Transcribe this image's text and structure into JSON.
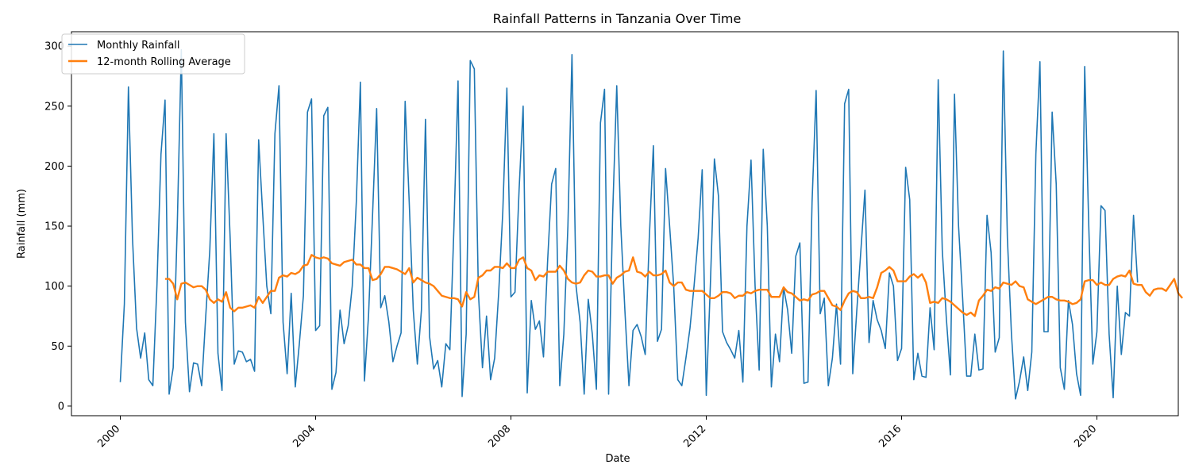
{
  "chart_data": {
    "type": "line",
    "title": "Rainfall Patterns in Tanzania Over Time",
    "xlabel": "Date",
    "ylabel": "Rainfall (mm)",
    "x_start_year": 2000,
    "x_ticks": [
      "2000",
      "2004",
      "2008",
      "2012",
      "2016",
      "2020"
    ],
    "y_ticks": [
      0,
      50,
      100,
      150,
      200,
      250,
      300
    ],
    "xlim": [
      "1999-01",
      "2021-09"
    ],
    "ylim": [
      -8,
      312
    ],
    "grid": false,
    "legend_position": "top-left",
    "series": [
      {
        "name": "Monthly Rainfall",
        "color": "#1f77b4",
        "start": "2000-01",
        "values": [
          20,
          85,
          266,
          140,
          65,
          40,
          61,
          22,
          17,
          100,
          210,
          255,
          10,
          32,
          150,
          297,
          70,
          12,
          36,
          35,
          17,
          75,
          130,
          227,
          44,
          13,
          227,
          140,
          35,
          46,
          45,
          37,
          39,
          29,
          222,
          160,
          100,
          77,
          227,
          267,
          70,
          27,
          94,
          16,
          52,
          92,
          245,
          256,
          63,
          67,
          242,
          249,
          14,
          28,
          80,
          52,
          67,
          100,
          170,
          270,
          21,
          75,
          160,
          248,
          82,
          92,
          70,
          37,
          50,
          61,
          254,
          170,
          80,
          35,
          80,
          239,
          58,
          31,
          38,
          16,
          52,
          47,
          150,
          271,
          8,
          60,
          288,
          281,
          95,
          32,
          75,
          22,
          40,
          95,
          162,
          265,
          91,
          95,
          180,
          250,
          11,
          88,
          64,
          71,
          41,
          120,
          185,
          198,
          17,
          60,
          150,
          293,
          100,
          70,
          10,
          89,
          60,
          14,
          236,
          264,
          10,
          160,
          267,
          150,
          80,
          17,
          63,
          68,
          58,
          43,
          140,
          217,
          54,
          64,
          198,
          150,
          100,
          22,
          17,
          40,
          65,
          100,
          140,
          197,
          9,
          100,
          206,
          175,
          62,
          53,
          47,
          40,
          63,
          20,
          150,
          205,
          100,
          30,
          214,
          150,
          16,
          60,
          37,
          99,
          80,
          44,
          125,
          136,
          19,
          20,
          170,
          263,
          77,
          90,
          17,
          40,
          85,
          35,
          252,
          264,
          27,
          80,
          130,
          180,
          53,
          88,
          72,
          63,
          48,
          111,
          100,
          38,
          48,
          199,
          172,
          22,
          44,
          25,
          24,
          82,
          47,
          272,
          130,
          73,
          26,
          260,
          150,
          90,
          25,
          25,
          60,
          30,
          31,
          159,
          128,
          45,
          57,
          296,
          140,
          60,
          6,
          21,
          41,
          13,
          45,
          210,
          287,
          62,
          62,
          245,
          185,
          32,
          14,
          88,
          68,
          27,
          9,
          283,
          150,
          35,
          62,
          167,
          163,
          60,
          7,
          100,
          43,
          78,
          75,
          159,
          103
        ]
      },
      {
        "name": "12-month Rolling Average",
        "color": "#ff7f0e",
        "start": "2000-12",
        "values": [
          106,
          106,
          102,
          89,
          102,
          103,
          101,
          99,
          100,
          100,
          97,
          89,
          86,
          89,
          87,
          95,
          82,
          79,
          82,
          82,
          83,
          84,
          82,
          91,
          86,
          91,
          96,
          96,
          107,
          109,
          108,
          111,
          110,
          112,
          117,
          118,
          126,
          124,
          123,
          124,
          123,
          119,
          118,
          117,
          120,
          121,
          122,
          118,
          118,
          115,
          115,
          105,
          106,
          110,
          116,
          116,
          115,
          114,
          112,
          110,
          115,
          103,
          107,
          105,
          103,
          102,
          100,
          96,
          92,
          91,
          90,
          90,
          89,
          83,
          95,
          89,
          91,
          107,
          109,
          113,
          113,
          116,
          116,
          115,
          119,
          115,
          115,
          122,
          124,
          115,
          113,
          105,
          109,
          108,
          112,
          112,
          112,
          117,
          113,
          106,
          103,
          102,
          103,
          109,
          113,
          112,
          108,
          108,
          109,
          109,
          102,
          107,
          109,
          112,
          113,
          124,
          112,
          111,
          108,
          112,
          109,
          109,
          110,
          113,
          103,
          100,
          103,
          103,
          97,
          96,
          96,
          96,
          96,
          93,
          90,
          90,
          92,
          95,
          95,
          94,
          90,
          92,
          92,
          95,
          94,
          96,
          97,
          97,
          97,
          91,
          91,
          91,
          99,
          95,
          94,
          91,
          88,
          89,
          88,
          93,
          94,
          96,
          96,
          90,
          84,
          83,
          80,
          88,
          94,
          96,
          95,
          90,
          90,
          91,
          90,
          99,
          111,
          113,
          116,
          113,
          104,
          104,
          104,
          108,
          110,
          107,
          110,
          103,
          86,
          87,
          86,
          90,
          89,
          87,
          84,
          81,
          78,
          76,
          78,
          75,
          88,
          92,
          97,
          96,
          99,
          98,
          103,
          102,
          101,
          104,
          100,
          99,
          89,
          87,
          85,
          87,
          89,
          91,
          91,
          89,
          88,
          88,
          87,
          85,
          86,
          89,
          104,
          105,
          105,
          101,
          103,
          101,
          101,
          106,
          108,
          109,
          108,
          113,
          102,
          101,
          101,
          95,
          92,
          97,
          98,
          98,
          96,
          101,
          106,
          94,
          90
        ]
      }
    ]
  }
}
